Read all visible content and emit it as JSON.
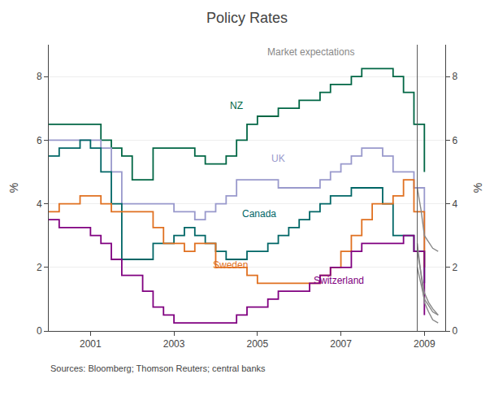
{
  "chart_data": {
    "type": "line",
    "title": "Policy Rates",
    "ylabel": "%",
    "y2label": "%",
    "source": "Sources: Bloomberg; Thomson Reuters; central banks",
    "xlim": [
      2000.0,
      2009.5
    ],
    "xticks": [
      2001,
      2003,
      2005,
      2007,
      2009
    ],
    "ylim": [
      0,
      9
    ],
    "yticks": [
      0,
      2,
      4,
      6,
      8
    ],
    "y2lim": [
      0,
      9
    ],
    "y2ticks": [
      0,
      2,
      4,
      6,
      8
    ],
    "grid": "y",
    "legend": false,
    "series": [
      {
        "name": "NZ",
        "color": "#006644",
        "line_style": "step",
        "x": [
          2000.0,
          2000.25,
          2000.5,
          2000.75,
          2001.0,
          2001.25,
          2001.5,
          2001.75,
          2002.0,
          2002.25,
          2002.5,
          2002.75,
          2003.0,
          2003.25,
          2003.5,
          2003.75,
          2004.0,
          2004.25,
          2004.5,
          2004.75,
          2005.0,
          2005.25,
          2005.5,
          2005.75,
          2006.0,
          2006.25,
          2006.5,
          2006.75,
          2007.0,
          2007.25,
          2007.5,
          2007.75,
          2008.0,
          2008.25,
          2008.5,
          2008.75,
          2009.0
        ],
        "values": [
          6.5,
          6.5,
          6.5,
          6.5,
          6.5,
          6.0,
          5.75,
          5.5,
          4.75,
          4.75,
          5.75,
          5.75,
          5.75,
          5.75,
          5.5,
          5.25,
          5.25,
          5.5,
          6.0,
          6.5,
          6.75,
          6.75,
          7.0,
          7.0,
          7.25,
          7.25,
          7.5,
          7.75,
          7.75,
          8.0,
          8.25,
          8.25,
          8.25,
          8.0,
          7.5,
          6.5,
          5.0
        ]
      },
      {
        "name": "UK",
        "color": "#9999cc",
        "line_style": "step",
        "x": [
          2000.0,
          2000.75,
          2001.0,
          2001.25,
          2001.5,
          2001.75,
          2002.0,
          2002.25,
          2002.5,
          2002.75,
          2003.0,
          2003.25,
          2003.5,
          2003.75,
          2004.0,
          2004.25,
          2004.5,
          2004.75,
          2005.0,
          2005.25,
          2005.5,
          2005.75,
          2006.0,
          2006.25,
          2006.5,
          2006.75,
          2007.0,
          2007.25,
          2007.5,
          2007.75,
          2008.0,
          2008.25,
          2008.5,
          2008.75,
          2009.0
        ],
        "values": [
          6.0,
          6.0,
          6.0,
          5.75,
          5.0,
          4.0,
          4.0,
          4.0,
          4.0,
          4.0,
          3.75,
          3.75,
          3.5,
          3.75,
          4.0,
          4.25,
          4.75,
          4.75,
          4.75,
          4.75,
          4.5,
          4.5,
          4.5,
          4.5,
          4.75,
          5.0,
          5.25,
          5.5,
          5.75,
          5.75,
          5.5,
          5.0,
          5.0,
          4.5,
          2.0
        ]
      },
      {
        "name": "Canada",
        "color": "#006666",
        "line_style": "step",
        "x": [
          2000.0,
          2000.25,
          2000.5,
          2000.75,
          2001.0,
          2001.25,
          2001.5,
          2001.75,
          2002.0,
          2002.25,
          2002.5,
          2002.75,
          2003.0,
          2003.25,
          2003.5,
          2003.75,
          2004.0,
          2004.25,
          2004.5,
          2004.75,
          2005.0,
          2005.25,
          2005.5,
          2005.75,
          2006.0,
          2006.25,
          2006.5,
          2006.75,
          2007.0,
          2007.25,
          2007.5,
          2007.75,
          2008.0,
          2008.25,
          2008.5,
          2008.75,
          2009.0
        ],
        "values": [
          5.5,
          5.75,
          5.75,
          6.0,
          5.75,
          5.0,
          4.0,
          2.25,
          2.25,
          2.25,
          2.75,
          2.75,
          3.0,
          3.25,
          3.0,
          2.75,
          2.5,
          2.25,
          2.25,
          2.5,
          2.5,
          2.75,
          3.0,
          3.25,
          3.5,
          3.75,
          4.0,
          4.25,
          4.25,
          4.5,
          4.5,
          4.5,
          4.0,
          3.0,
          3.0,
          2.5,
          1.5
        ]
      },
      {
        "name": "Sweden",
        "color": "#e07020",
        "line_style": "step",
        "x": [
          2000.0,
          2000.25,
          2000.5,
          2000.75,
          2001.0,
          2001.25,
          2001.5,
          2001.75,
          2002.0,
          2002.25,
          2002.5,
          2002.75,
          2003.0,
          2003.25,
          2003.5,
          2003.75,
          2004.0,
          2004.25,
          2004.5,
          2004.75,
          2005.0,
          2005.25,
          2005.5,
          2005.75,
          2006.0,
          2006.25,
          2006.5,
          2006.75,
          2007.0,
          2007.25,
          2007.5,
          2007.75,
          2008.0,
          2008.25,
          2008.5,
          2008.75,
          2009.0
        ],
        "values": [
          3.75,
          4.0,
          4.0,
          4.25,
          4.25,
          4.0,
          3.75,
          3.75,
          3.75,
          3.75,
          3.25,
          2.75,
          2.75,
          2.5,
          2.75,
          2.75,
          2.0,
          2.0,
          2.0,
          1.75,
          1.5,
          1.5,
          1.5,
          1.5,
          1.5,
          1.5,
          1.75,
          2.0,
          2.5,
          3.0,
          3.5,
          4.0,
          4.0,
          4.25,
          4.75,
          3.75,
          2.0
        ]
      },
      {
        "name": "Switzerland",
        "color": "#800080",
        "line_style": "step",
        "x": [
          2000.0,
          2000.25,
          2000.5,
          2000.75,
          2001.0,
          2001.25,
          2001.5,
          2001.75,
          2002.0,
          2002.25,
          2002.5,
          2002.75,
          2003.0,
          2003.25,
          2003.5,
          2003.75,
          2004.0,
          2004.25,
          2004.5,
          2004.75,
          2005.0,
          2005.25,
          2005.5,
          2005.75,
          2006.0,
          2006.25,
          2006.5,
          2006.75,
          2007.0,
          2007.25,
          2007.5,
          2007.75,
          2008.0,
          2008.25,
          2008.5,
          2008.75,
          2009.0
        ],
        "values": [
          3.5,
          3.25,
          3.25,
          3.25,
          3.0,
          2.75,
          2.25,
          1.75,
          1.75,
          1.25,
          0.75,
          0.5,
          0.25,
          0.25,
          0.25,
          0.25,
          0.25,
          0.25,
          0.5,
          0.75,
          0.75,
          1.0,
          1.25,
          1.25,
          1.25,
          1.5,
          1.75,
          2.0,
          2.0,
          2.5,
          2.75,
          2.75,
          2.75,
          2.75,
          3.0,
          2.5,
          0.5
        ]
      },
      {
        "name": "Market expectations",
        "color": "#888888",
        "line_style": "solid",
        "x": [
          2008.83,
          2008.92,
          2009.0,
          2009.1,
          2009.2,
          2009.33
        ],
        "values": [
          4.5,
          3.8,
          3.0,
          2.8,
          2.6,
          2.5
        ]
      },
      {
        "name": "Market expectations",
        "color": "#888888",
        "line_style": "solid",
        "x": [
          2008.83,
          2008.92,
          2009.0,
          2009.1,
          2009.2,
          2009.33
        ],
        "values": [
          2.5,
          1.8,
          1.2,
          0.9,
          0.7,
          0.5
        ]
      },
      {
        "name": "Market expectations",
        "color": "#888888",
        "line_style": "solid",
        "x": [
          2008.83,
          2008.92,
          2009.0,
          2009.1,
          2009.2,
          2009.33
        ],
        "values": [
          2.75,
          1.8,
          0.9,
          0.6,
          0.35,
          0.25
        ]
      },
      {
        "name": "Market expectations",
        "color": "#888888",
        "line_style": "solid",
        "x": [
          2008.83,
          2008.92,
          2009.0,
          2009.1,
          2009.2,
          2009.33
        ],
        "values": [
          2.0,
          1.5,
          1.0,
          0.8,
          0.6,
          0.5
        ]
      }
    ],
    "vertical_lines": [
      {
        "x": 2008.83,
        "color": "#555555"
      }
    ],
    "annotations": [
      {
        "text": "NZ",
        "x": 2004.3,
        "y": 6.85,
        "color": "#006644"
      },
      {
        "text": "UK",
        "x": 2005.3,
        "y": 5.2,
        "color": "#9999cc"
      },
      {
        "text": "Canada",
        "x": 2004.6,
        "y": 3.45,
        "color": "#006666"
      },
      {
        "text": "Sweden",
        "x": 2003.9,
        "y": 1.85,
        "color": "#e07020"
      },
      {
        "text": "Switzerland",
        "x": 2006.3,
        "y": 1.35,
        "color": "#800080"
      },
      {
        "text": "Market expectations",
        "x": 2005.2,
        "y": 8.55,
        "color": "#888888"
      }
    ]
  }
}
